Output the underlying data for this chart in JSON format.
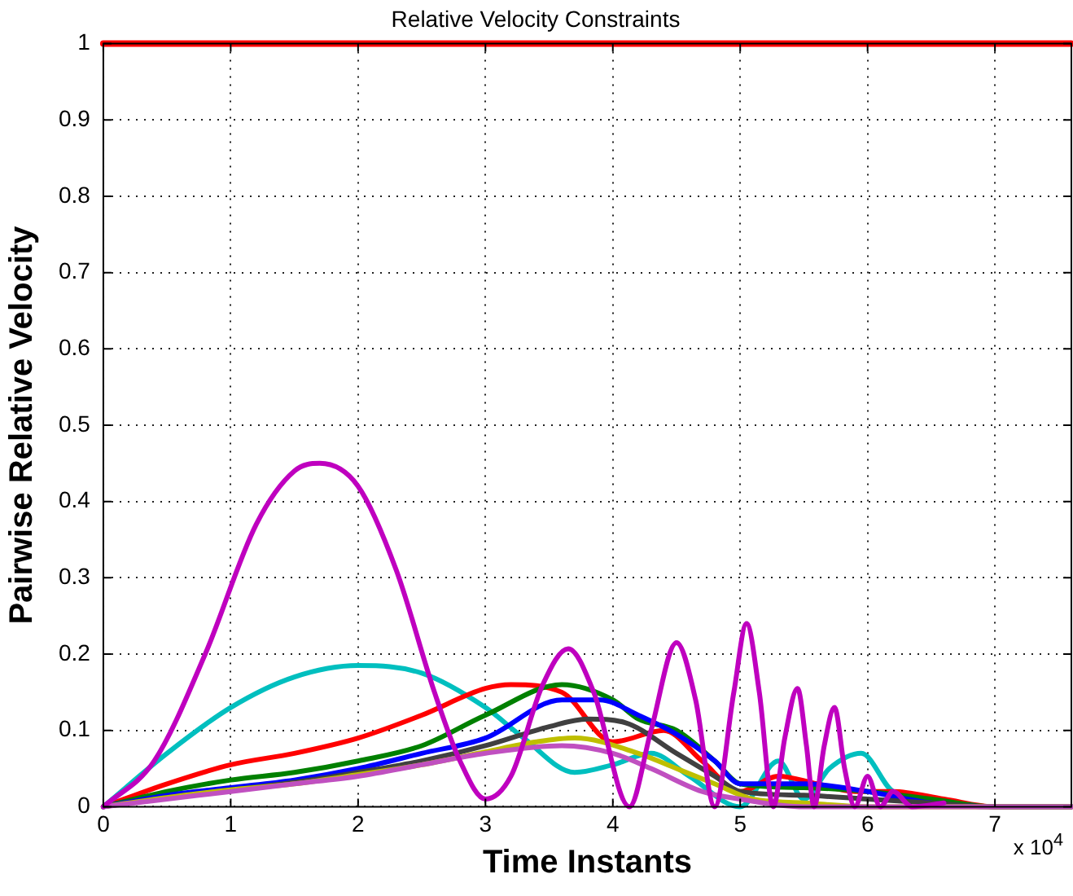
{
  "chart_data": {
    "type": "line",
    "title": "Relative Velocity Constraints",
    "xlabel": "Time Instants",
    "ylabel": "Pairwise Relative Velocity",
    "xlim": [
      0,
      7.6
    ],
    "xticks": [
      0,
      1,
      2,
      3,
      4,
      5,
      6,
      7
    ],
    "ylim": [
      0,
      1
    ],
    "yticks": [
      0,
      0.1,
      0.2,
      0.3,
      0.4,
      0.5,
      0.6,
      0.7,
      0.8,
      0.9,
      1
    ],
    "grid": true,
    "legend": false,
    "marker": "none",
    "line_style": "solid",
    "annotations": [
      "x 10$^{4}$"
    ],
    "series": [
      {
        "color": "#ff0000",
        "x": [
          0,
          7.6
        ],
        "values": [
          1,
          1
        ]
      },
      {
        "color": "#00bfbf",
        "x": [
          0,
          0.5,
          1,
          1.5,
          2,
          2.5,
          3,
          3.3,
          3.7,
          4,
          4.3,
          4.6,
          5,
          5.3,
          5.5,
          5.7,
          5.95,
          6.2,
          6.5
        ],
        "values": [
          0,
          0.07,
          0.13,
          0.17,
          0.185,
          0.175,
          0.13,
          0.09,
          0.045,
          0.055,
          0.07,
          0.04,
          0.0,
          0.06,
          0.01,
          0.05,
          0.07,
          0.02,
          0.01
        ]
      },
      {
        "color": "#ff0000",
        "x": [
          0,
          0.5,
          1,
          1.5,
          2,
          2.5,
          3,
          3.2,
          3.6,
          4,
          4.4,
          4.7,
          5,
          5.3,
          5.6,
          5.9,
          6.2,
          6.6,
          7,
          7.6
        ],
        "values": [
          0,
          0.03,
          0.055,
          0.07,
          0.09,
          0.12,
          0.155,
          0.16,
          0.15,
          0.085,
          0.1,
          0.06,
          0.02,
          0.04,
          0.03,
          0.02,
          0.02,
          0.01,
          0.0,
          0
        ]
      },
      {
        "color": "#008000",
        "x": [
          0,
          0.5,
          1,
          1.5,
          2,
          2.5,
          3,
          3.6,
          4,
          4.2,
          4.5,
          4.8,
          5,
          5.5,
          6,
          6.5,
          7,
          7.6
        ],
        "values": [
          0,
          0.02,
          0.035,
          0.045,
          0.06,
          0.08,
          0.12,
          0.16,
          0.14,
          0.115,
          0.1,
          0.06,
          0.03,
          0.025,
          0.02,
          0.01,
          0.0,
          0
        ]
      },
      {
        "color": "#0000ff",
        "x": [
          0,
          0.5,
          1,
          1.5,
          2,
          2.5,
          3,
          3.6,
          3.9,
          4.2,
          4.5,
          4.8,
          5,
          5.5,
          6,
          6.5,
          7,
          7.6
        ],
        "values": [
          0,
          0.015,
          0.025,
          0.035,
          0.05,
          0.07,
          0.09,
          0.14,
          0.14,
          0.12,
          0.095,
          0.06,
          0.03,
          0.03,
          0.02,
          0.005,
          0.0,
          0
        ]
      },
      {
        "color": "#404040",
        "x": [
          0,
          0.5,
          1,
          1.5,
          2,
          2.5,
          3,
          3.5,
          3.8,
          4.1,
          4.5,
          4.8,
          5,
          5.5,
          6,
          6.5,
          7,
          7.6
        ],
        "values": [
          0,
          0.012,
          0.022,
          0.032,
          0.045,
          0.06,
          0.08,
          0.105,
          0.115,
          0.11,
          0.07,
          0.04,
          0.02,
          0.015,
          0.01,
          0.005,
          0.0,
          0
        ]
      },
      {
        "color": "#bfbf00",
        "x": [
          0,
          0.5,
          1,
          1.5,
          2,
          2.5,
          3,
          3.4,
          3.7,
          4.2,
          4.5,
          4.8,
          5.1,
          5.5,
          6,
          7,
          7.6
        ],
        "values": [
          0,
          0.012,
          0.022,
          0.03,
          0.042,
          0.055,
          0.072,
          0.085,
          0.09,
          0.07,
          0.05,
          0.03,
          0.01,
          0.005,
          0.0,
          0,
          0
        ]
      },
      {
        "color": "#c050c0",
        "x": [
          0,
          0.5,
          1,
          1.5,
          2,
          2.5,
          3,
          3.6,
          4,
          4.3,
          4.7,
          5,
          5.5,
          6,
          7,
          7.6
        ],
        "values": [
          0,
          0.01,
          0.02,
          0.03,
          0.04,
          0.055,
          0.07,
          0.08,
          0.07,
          0.05,
          0.02,
          0.01,
          0.0,
          0,
          0,
          0
        ]
      },
      {
        "color": "#bf00bf",
        "x": [
          0,
          0.4,
          0.8,
          1.2,
          1.5,
          1.7,
          2,
          2.3,
          2.6,
          2.8,
          3.0,
          3.2,
          3.45,
          3.65,
          3.85,
          4.13,
          4.3,
          4.5,
          4.65,
          4.8,
          4.95,
          5.05,
          5.15,
          5.26,
          5.35,
          5.45,
          5.52,
          5.58,
          5.66,
          5.74,
          5.82,
          5.9,
          6.0,
          6.1,
          6.2,
          6.35,
          6.6
        ],
        "values": [
          0,
          0.06,
          0.2,
          0.37,
          0.44,
          0.45,
          0.42,
          0.31,
          0.15,
          0.06,
          0.01,
          0.04,
          0.16,
          0.207,
          0.15,
          0.0,
          0.1,
          0.215,
          0.14,
          0.0,
          0.15,
          0.24,
          0.15,
          0.0,
          0.09,
          0.155,
          0.08,
          0.0,
          0.08,
          0.13,
          0.05,
          0.0,
          0.04,
          0.0,
          0.02,
          0.0,
          0.005
        ]
      }
    ]
  }
}
